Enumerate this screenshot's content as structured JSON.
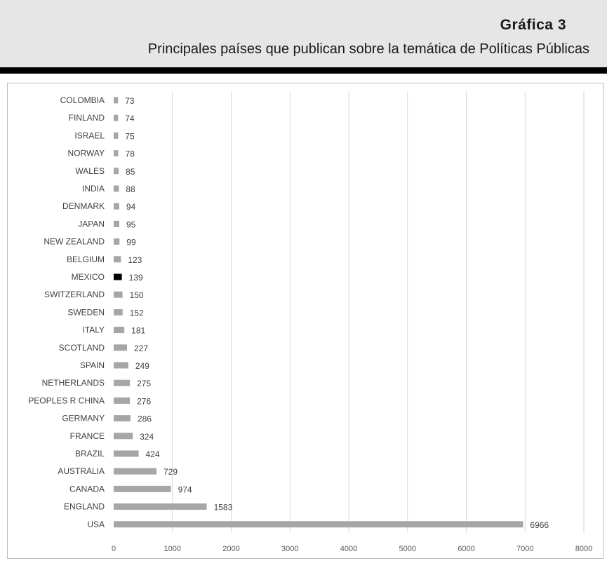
{
  "header": {
    "title": "Gráfica  3",
    "subtitle": "Principales países que publican sobre la temática de Políticas Públicas"
  },
  "colors": {
    "bar": "#a6a6a6",
    "highlight_bar": "#000000",
    "header_bg": "#e6e6e6",
    "grid": "#d9d9d9"
  },
  "chart_data": {
    "type": "bar",
    "orientation": "horizontal",
    "categories": [
      "COLOMBIA",
      "FINLAND",
      "ISRAEL",
      "NORWAY",
      "WALES",
      "INDIA",
      "DENMARK",
      "JAPAN",
      "NEW ZEALAND",
      "BELGIUM",
      "MEXICO",
      "SWITZERLAND",
      "SWEDEN",
      "ITALY",
      "SCOTLAND",
      "SPAIN",
      "NETHERLANDS",
      "PEOPLES R CHINA",
      "GERMANY",
      "FRANCE",
      "BRAZIL",
      "AUSTRALIA",
      "CANADA",
      "ENGLAND",
      "USA"
    ],
    "values": [
      73,
      74,
      75,
      78,
      85,
      88,
      94,
      95,
      99,
      123,
      139,
      150,
      152,
      181,
      227,
      249,
      275,
      276,
      286,
      324,
      424,
      729,
      974,
      1583,
      6966
    ],
    "highlight": "MEXICO",
    "xlim": [
      0,
      8000
    ],
    "xticks": [
      0,
      1000,
      2000,
      3000,
      4000,
      5000,
      6000,
      7000,
      8000
    ],
    "grid": true,
    "legend": "none"
  }
}
